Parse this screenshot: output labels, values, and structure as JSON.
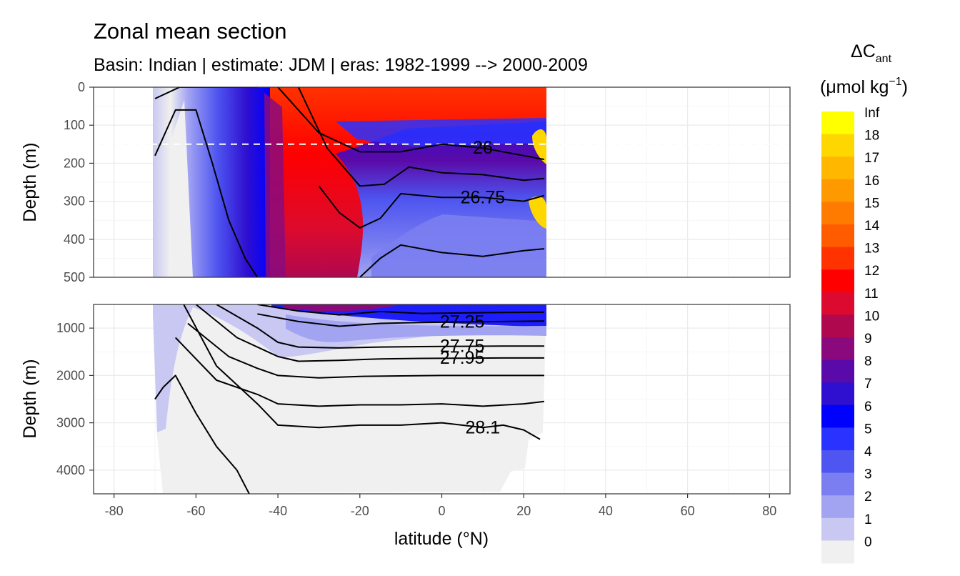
{
  "title": "Zonal mean section",
  "subtitle": "Basin: Indian | estimate: JDM  | eras: 1982-1999 --> 2000-2009",
  "chart_data": {
    "type": "contour",
    "title": "Zonal mean section",
    "subtitle": "Basin: Indian | estimate: JDM  | eras: 1982-1999 --> 2000-2009",
    "xlabel": "latitude (°N)",
    "xlim": [
      -85,
      85
    ],
    "x_ticks": [
      -80,
      -60,
      -40,
      -20,
      0,
      20,
      40,
      60,
      80
    ],
    "data_lat_range": [
      -70,
      25
    ],
    "reference_depth_line_m": 150,
    "panels": [
      {
        "name": "upper",
        "ylabel": "Depth (m)",
        "ylim": [
          0,
          500
        ],
        "y_ticks": [
          0,
          100,
          200,
          300,
          400,
          500
        ],
        "fill_regions": [
          {
            "lat_min": -70,
            "lat_max": -55,
            "depth_min": 0,
            "depth_max": 500,
            "class": "0-3"
          },
          {
            "lat_min": -55,
            "lat_max": -40,
            "depth_min": 0,
            "depth_max": 500,
            "class": "4-7"
          },
          {
            "lat_min": -40,
            "lat_max": 25,
            "depth_min": 0,
            "depth_max": 130,
            "class": "13-14"
          },
          {
            "lat_min": -40,
            "lat_max": -15,
            "depth_min": 130,
            "depth_max": 420,
            "class": "12-13"
          },
          {
            "lat_min": -10,
            "lat_max": 25,
            "depth_min": 180,
            "depth_max": 300,
            "class": "5-9"
          },
          {
            "lat_min": -10,
            "lat_max": 25,
            "depth_min": 300,
            "depth_max": 500,
            "class": "2-5"
          }
        ],
        "isopycnals": [
          {
            "label": "",
            "lat": [
              -70,
              -64,
              -60,
              -55,
              -50,
              -45
            ],
            "depth": [
              30,
              0,
              0,
              0,
              0,
              0
            ]
          },
          {
            "label": "",
            "lat": [
              -70,
              -65,
              -60,
              -56,
              -52,
              -48,
              -45
            ],
            "depth": [
              180,
              60,
              60,
              200,
              350,
              450,
              500
            ]
          },
          {
            "label": "26",
            "lat": [
              -40,
              -30,
              -20,
              -10,
              0,
              10,
              20,
              25
            ],
            "depth": [
              0,
              120,
              170,
              170,
              150,
              160,
              180,
              190
            ]
          },
          {
            "label": "",
            "lat": [
              -35,
              -28,
              -20,
              -14,
              -8,
              0,
              10,
              20,
              25
            ],
            "depth": [
              0,
              160,
              260,
              255,
              210,
              225,
              230,
              245,
              240
            ]
          },
          {
            "label": "26.75",
            "lat": [
              -30,
              -25,
              -20,
              -15,
              -10,
              0,
              10,
              20,
              25
            ],
            "depth": [
              260,
              330,
              370,
              345,
              280,
              290,
              290,
              300,
              285
            ]
          },
          {
            "label": "",
            "lat": [
              -20,
              -15,
              -10,
              0,
              10,
              20,
              25
            ],
            "depth": [
              500,
              450,
              415,
              435,
              445,
              430,
              425
            ]
          }
        ]
      },
      {
        "name": "lower",
        "ylabel": "Depth (m)",
        "ylim": [
          500,
          4500
        ],
        "y_ticks": [
          1000,
          2000,
          3000,
          4000
        ],
        "isopycnals": [
          {
            "label": "",
            "lat": [
              -45,
              -35,
              -25,
              -15,
              -5,
              5,
              15,
              25
            ],
            "depth": [
              500,
              640,
              720,
              650,
              690,
              680,
              670,
              665
            ]
          },
          {
            "label": "27.25",
            "lat": [
              -45,
              -35,
              -25,
              -15,
              -5,
              5,
              15,
              25
            ],
            "depth": [
              700,
              860,
              960,
              900,
              880,
              870,
              860,
              850
            ]
          },
          {
            "label": "27.75",
            "lat": [
              -55,
              -45,
              -40,
              -35,
              -25,
              -15,
              -5,
              5,
              15,
              25
            ],
            "depth": [
              500,
              1000,
              1300,
              1400,
              1420,
              1400,
              1390,
              1385,
              1380,
              1380
            ]
          },
          {
            "label": "27.95",
            "lat": [
              -60,
              -50,
              -40,
              -35,
              -25,
              -15,
              -5,
              5,
              15,
              25
            ],
            "depth": [
              500,
              1200,
              1600,
              1700,
              1680,
              1650,
              1640,
              1635,
              1630,
              1630
            ]
          },
          {
            "label": "",
            "lat": [
              -62,
              -52,
              -45,
              -40,
              -30,
              -20,
              -10,
              0,
              10,
              20,
              25
            ],
            "depth": [
              900,
              1600,
              1850,
              2000,
              2050,
              2020,
              2010,
              2000,
              2000,
              2000,
              2000
            ]
          },
          {
            "label": "",
            "lat": [
              -65,
              -55,
              -45,
              -40,
              -30,
              -20,
              -10,
              0,
              10,
              20,
              25
            ],
            "depth": [
              1200,
              2100,
              2400,
              2600,
              2650,
              2620,
              2620,
              2600,
              2650,
              2600,
              2550
            ]
          },
          {
            "label": "28.1",
            "lat": [
              -63,
              -55,
              -45,
              -40,
              -30,
              -20,
              -10,
              0,
              10,
              15,
              20,
              24
            ],
            "depth": [
              500,
              1800,
              2600,
              3050,
              3100,
              3050,
              3050,
              3000,
              3100,
              3050,
              3150,
              3350
            ]
          },
          {
            "label": "",
            "lat": [
              -70,
              -68,
              -65,
              -60,
              -55,
              -50,
              -47
            ],
            "depth": [
              2500,
              2250,
              2000,
              2800,
              3500,
              4000,
              4500
            ]
          }
        ]
      }
    ],
    "legend": {
      "title": "ΔC",
      "title_subscript": "ant",
      "units": "(μmol kg",
      "units_superscript": "−1",
      "units_close": ")",
      "labels": [
        "Inf",
        "18",
        "17",
        "16",
        "15",
        "14",
        "13",
        "12",
        "11",
        "10",
        "9",
        "8",
        "7",
        "6",
        "5",
        "4",
        "3",
        "2",
        "1",
        "0"
      ],
      "colors": [
        "#ffff00",
        "#ffd700",
        "#ffb700",
        "#ff9900",
        "#ff7b00",
        "#ff5c00",
        "#ff3300",
        "#ff0000",
        "#dc0a2e",
        "#b0084f",
        "#8a0a7e",
        "#5a0aa8",
        "#2f0fd0",
        "#0000ff",
        "#2a32ff",
        "#4e55f0",
        "#7a7ef0",
        "#a2a4f2",
        "#c8c8f2",
        "#f0f0f0"
      ]
    }
  }
}
